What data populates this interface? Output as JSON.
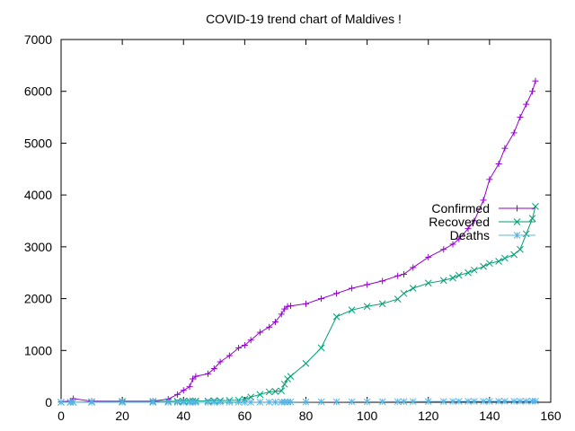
{
  "chart_data": {
    "type": "line",
    "title": "COVID-19 trend chart of Maldives !",
    "xlabel": "",
    "ylabel": "",
    "xlim": [
      0,
      160
    ],
    "ylim": [
      0,
      7000
    ],
    "xticks": [
      0,
      20,
      40,
      60,
      80,
      100,
      120,
      140,
      160
    ],
    "yticks": [
      0,
      1000,
      2000,
      3000,
      4000,
      5000,
      6000,
      7000
    ],
    "grid": false,
    "legend_position": "right",
    "x": [
      0,
      3,
      4,
      10,
      20,
      30,
      35,
      38,
      40,
      42,
      43,
      44,
      48,
      50,
      52,
      55,
      58,
      60,
      62,
      65,
      68,
      70,
      72,
      73,
      74,
      75,
      80,
      85,
      90,
      95,
      100,
      105,
      110,
      112,
      115,
      120,
      125,
      128,
      130,
      133,
      135,
      138,
      140,
      143,
      145,
      148,
      150,
      152,
      154,
      155
    ],
    "series": [
      {
        "name": "Confirmed",
        "color": "#9400d3",
        "marker": "plus",
        "values": [
          10,
          20,
          70,
          20,
          20,
          20,
          60,
          150,
          230,
          300,
          450,
          500,
          550,
          650,
          780,
          900,
          1050,
          1100,
          1200,
          1350,
          1450,
          1550,
          1700,
          1800,
          1850,
          1860,
          1900,
          2000,
          2100,
          2200,
          2270,
          2340,
          2440,
          2470,
          2600,
          2800,
          2950,
          3050,
          3150,
          3350,
          3500,
          3900,
          4300,
          4600,
          4900,
          5200,
          5500,
          5750,
          6000,
          6200
        ]
      },
      {
        "name": "Recovered",
        "color": "#009e73",
        "marker": "x",
        "values": [
          0,
          0,
          0,
          10,
          15,
          15,
          15,
          20,
          20,
          25,
          25,
          25,
          25,
          30,
          30,
          35,
          40,
          60,
          100,
          150,
          200,
          210,
          220,
          350,
          450,
          500,
          750,
          1050,
          1650,
          1780,
          1850,
          1900,
          1990,
          2100,
          2200,
          2300,
          2350,
          2400,
          2450,
          2500,
          2550,
          2620,
          2680,
          2720,
          2780,
          2850,
          2950,
          3250,
          3550,
          3780
        ]
      },
      {
        "name": "Deaths",
        "color": "#56b4e9",
        "marker": "star",
        "values": [
          0,
          0,
          0,
          0,
          0,
          0,
          0,
          0,
          0,
          0,
          0,
          0,
          0,
          0,
          1,
          1,
          1,
          1,
          1,
          2,
          2,
          3,
          4,
          5,
          5,
          6,
          7,
          8,
          9,
          10,
          10,
          11,
          12,
          13,
          14,
          15,
          15,
          16,
          17,
          17,
          18,
          18,
          18,
          19,
          19,
          19,
          20,
          20,
          21,
          21
        ]
      }
    ]
  }
}
